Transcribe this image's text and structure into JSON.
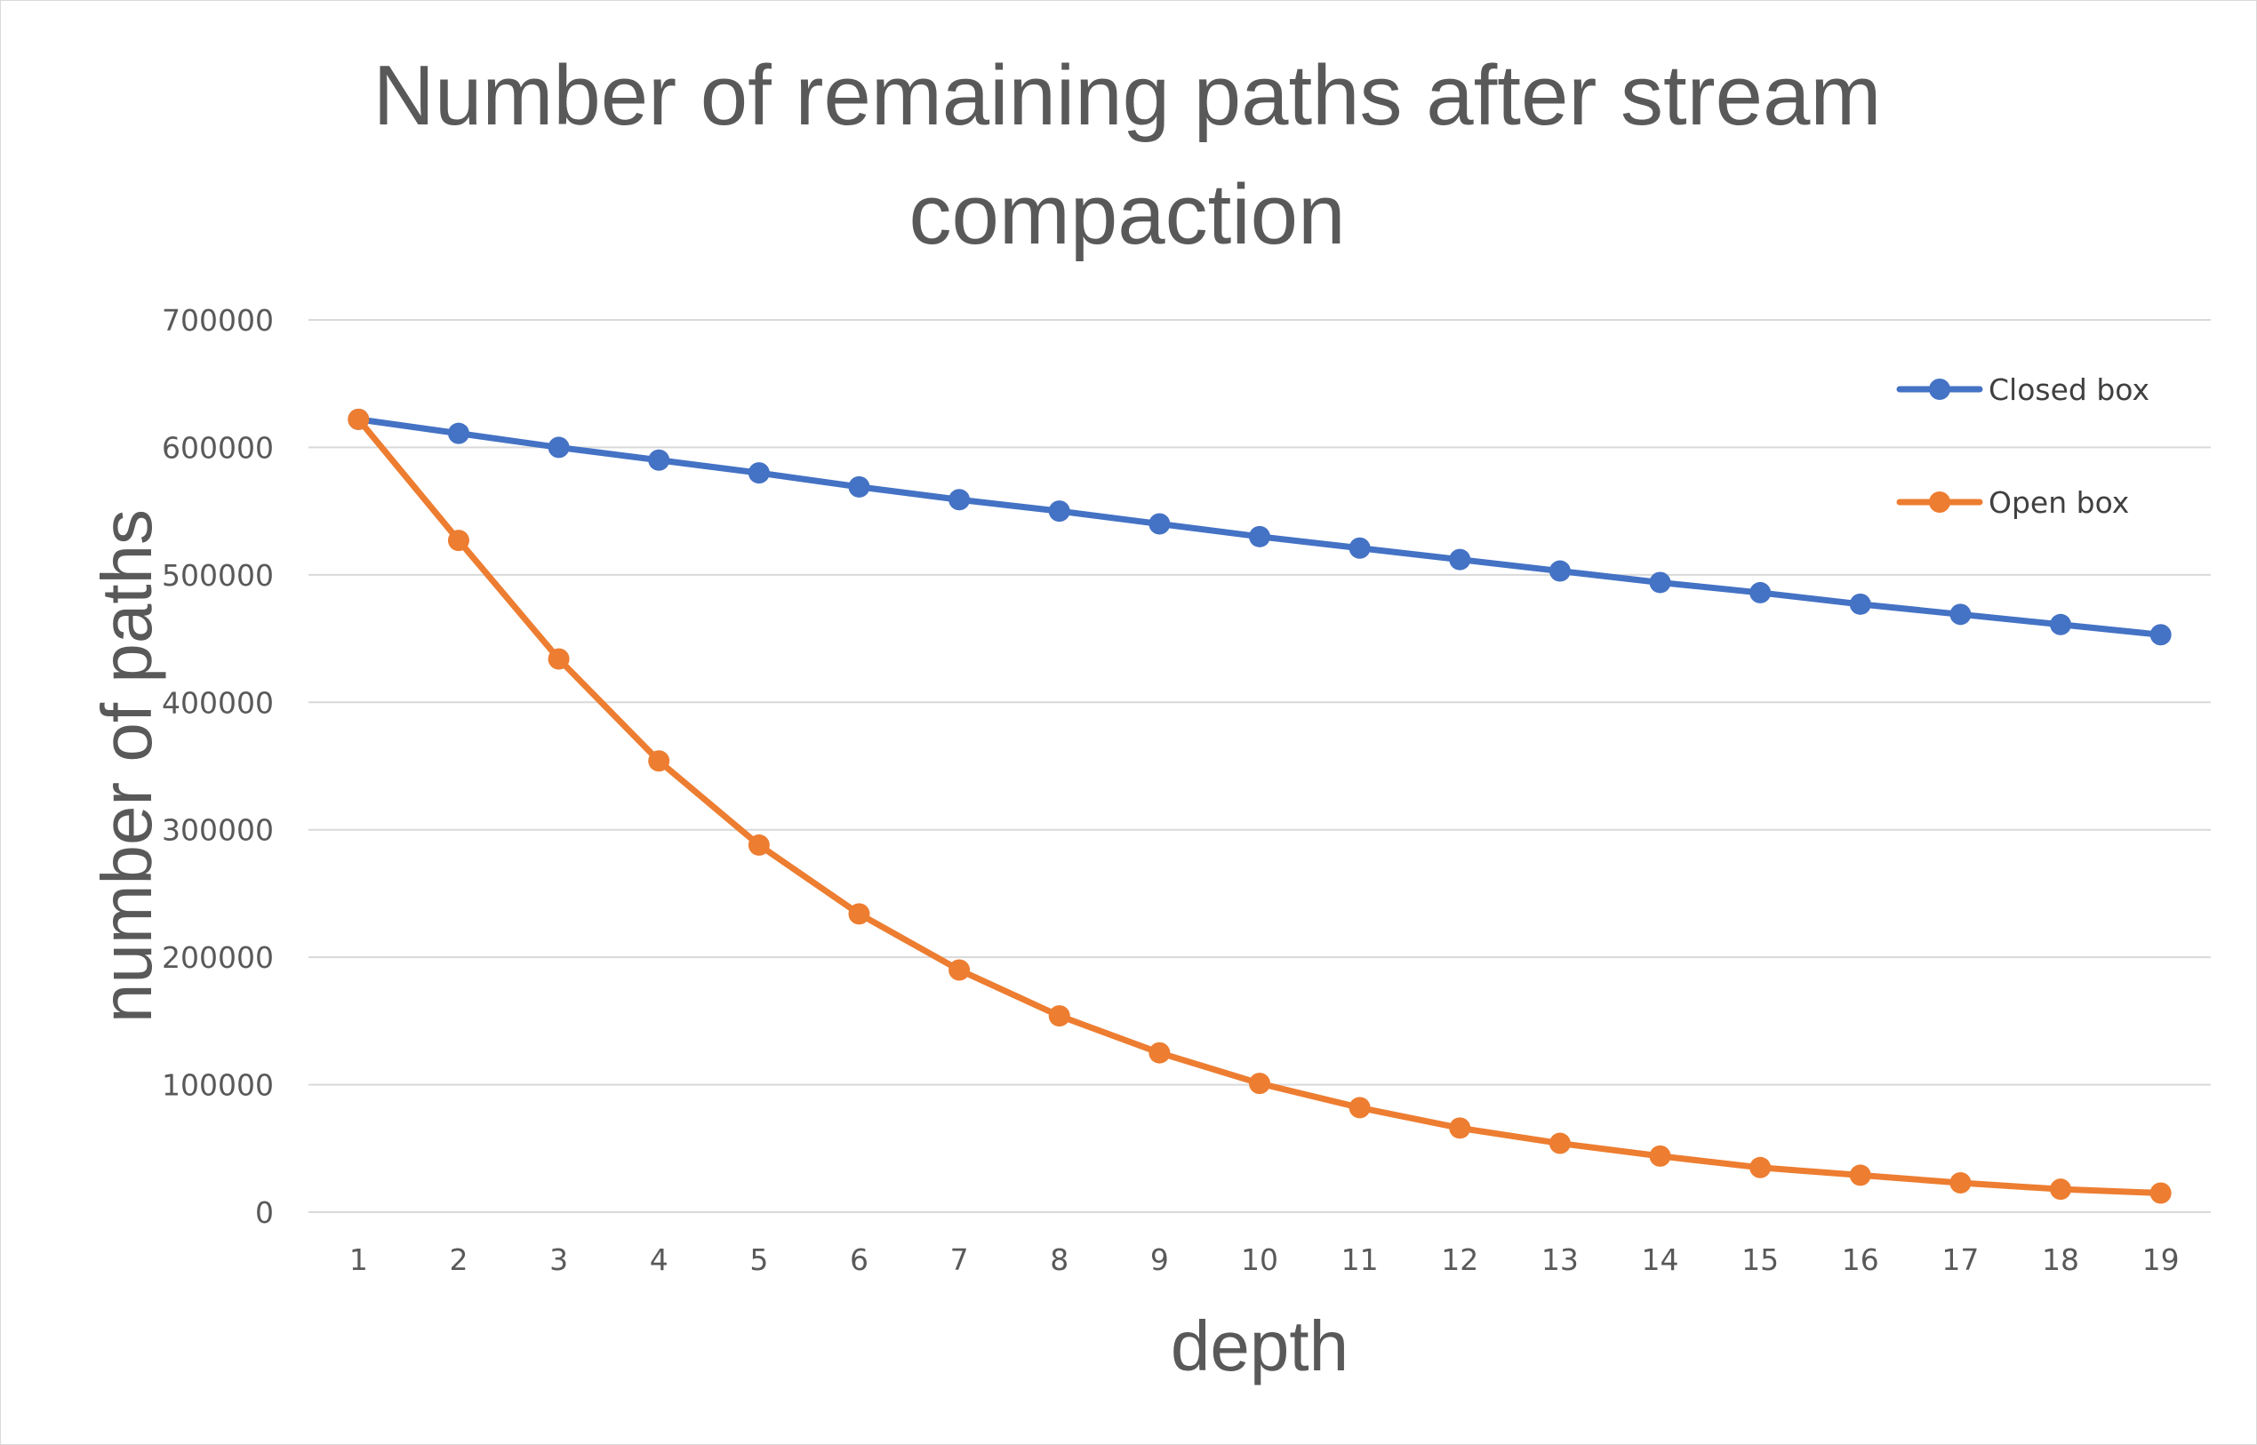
{
  "chart_data": {
    "type": "line",
    "title": "Number of remaining paths after stream compaction",
    "xlabel": "depth",
    "ylabel": "number of paths",
    "x": [
      "1",
      "2",
      "3",
      "4",
      "5",
      "6",
      "7",
      "8",
      "9",
      "10",
      "11",
      "12",
      "13",
      "14",
      "15",
      "16",
      "17",
      "18",
      "19"
    ],
    "ylim": [
      0,
      700000
    ],
    "yticks": [
      "0",
      "100000",
      "200000",
      "300000",
      "400000",
      "500000",
      "600000",
      "700000"
    ],
    "grid": true,
    "legend_position": "top-right",
    "series": [
      {
        "name": "Closed box",
        "color": "#4472c4",
        "values": [
          622000,
          611000,
          600000,
          590000,
          580000,
          569000,
          559000,
          550000,
          540000,
          530000,
          521000,
          512000,
          503000,
          494000,
          486000,
          477000,
          469000,
          461000,
          453000
        ]
      },
      {
        "name": "Open box",
        "color": "#ed7d31",
        "values": [
          622000,
          527000,
          434000,
          354000,
          288000,
          234000,
          190000,
          154000,
          125000,
          101000,
          82000,
          66000,
          54000,
          44000,
          35000,
          29000,
          23000,
          18000,
          15000
        ]
      }
    ]
  }
}
